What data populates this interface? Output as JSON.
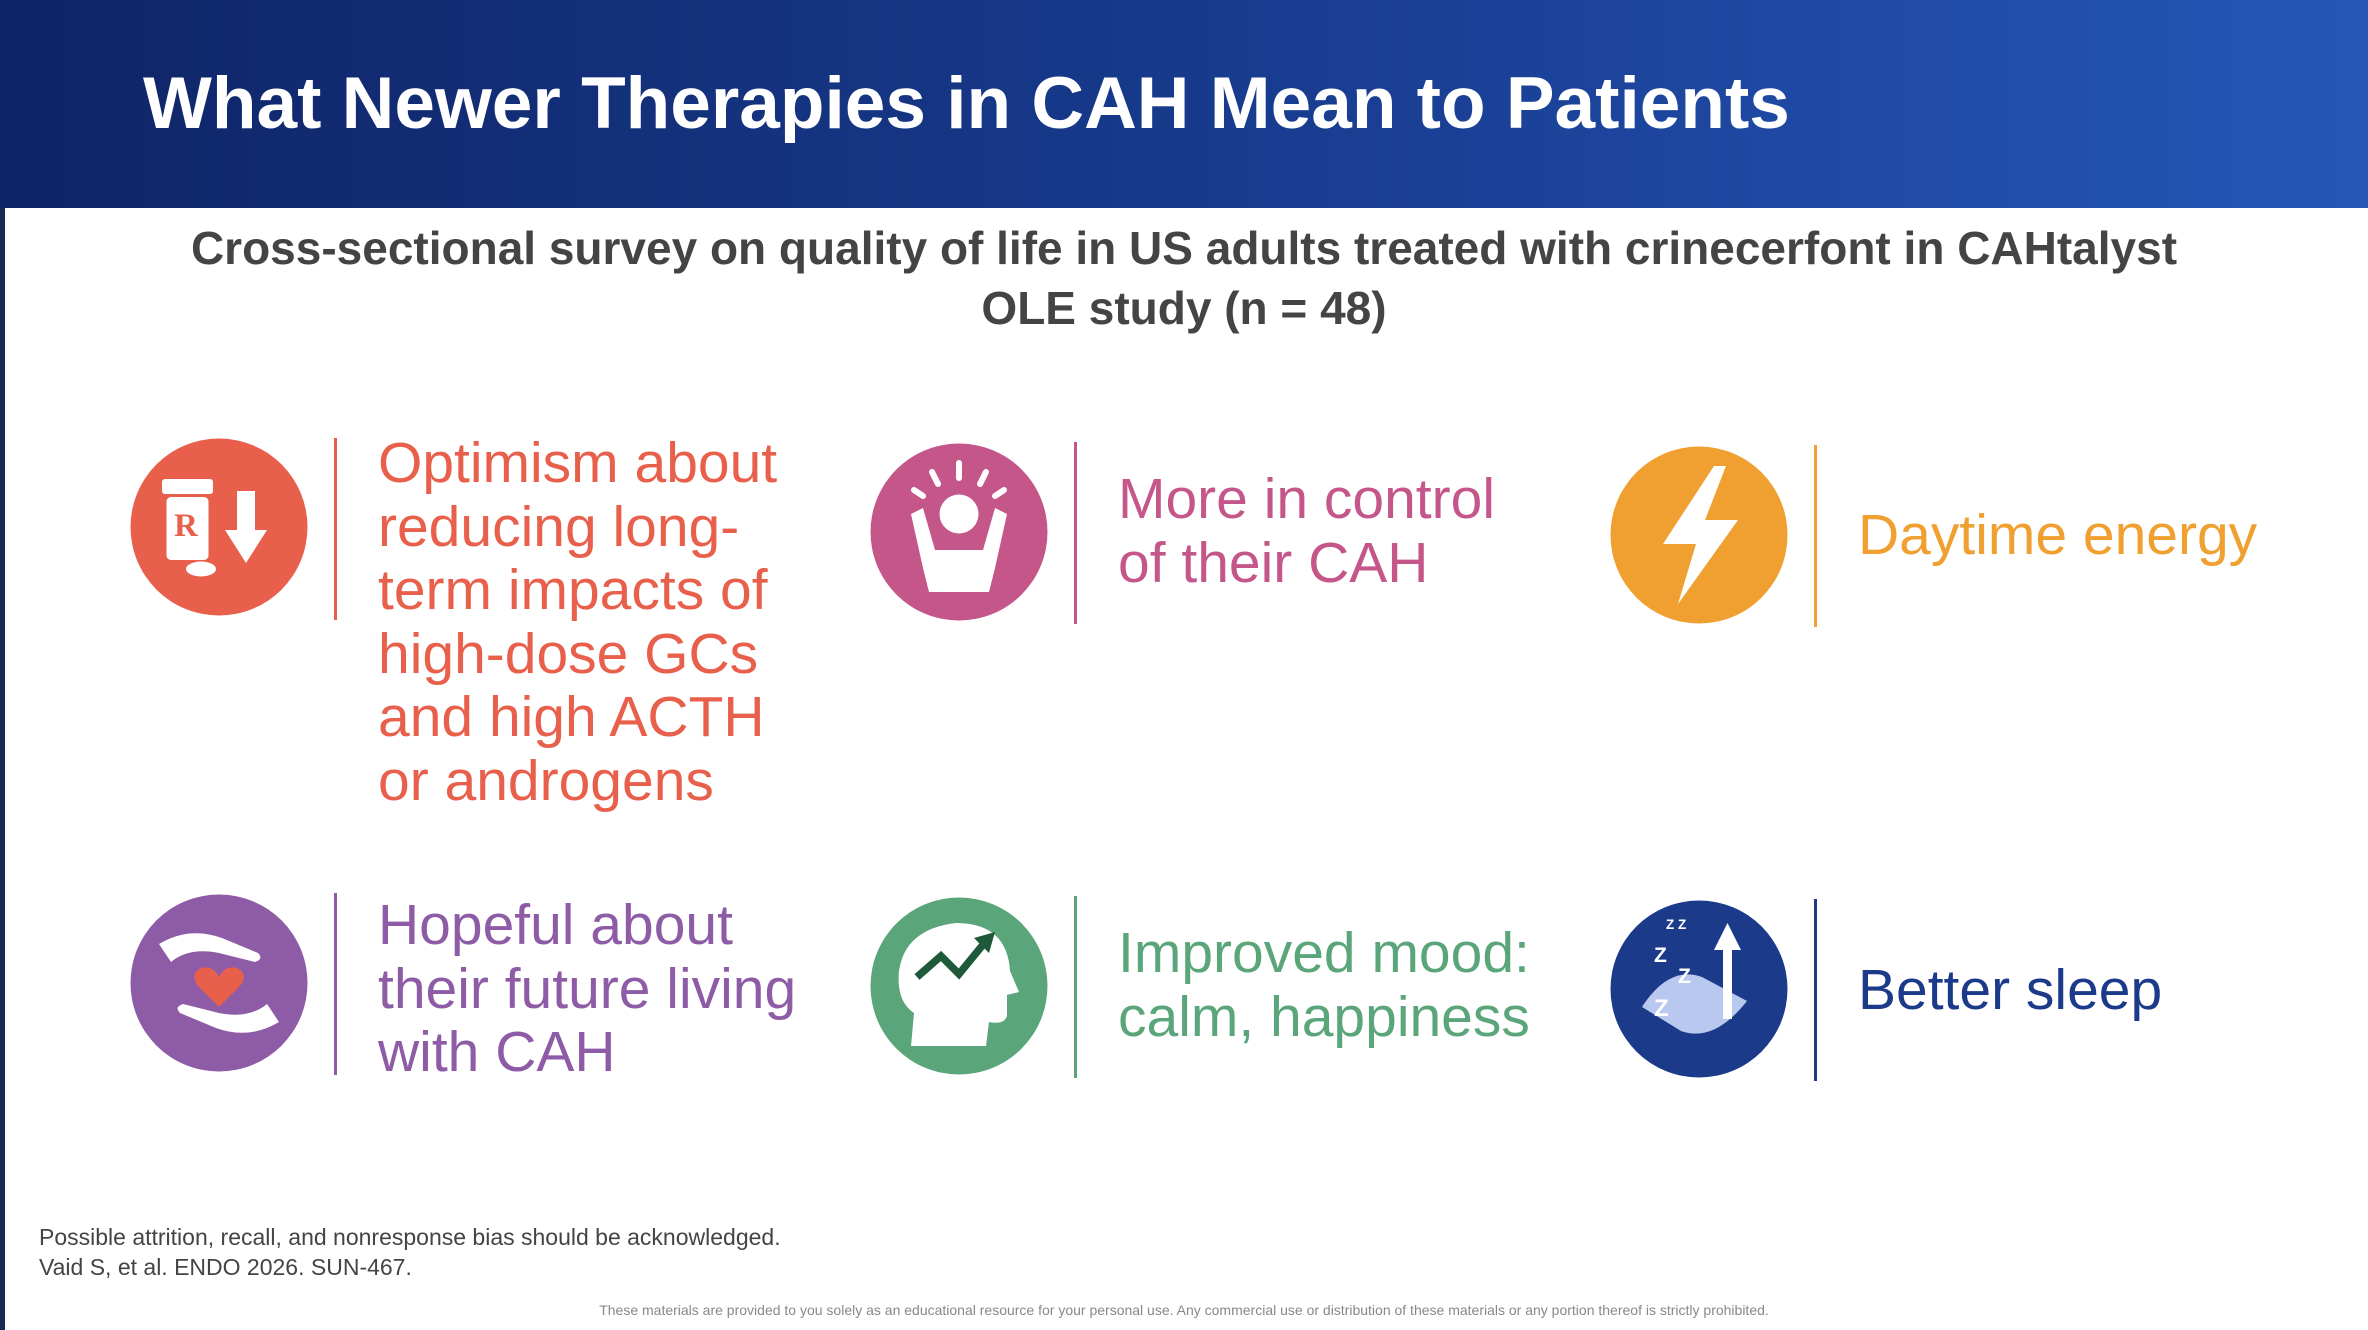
{
  "header": {
    "title": "What Newer Therapies in CAH Mean to Patients"
  },
  "subtitle": {
    "lines": [
      "Cross-sectional survey on quality of life in US adults treated with crinecerfont in CAHtalyst",
      "OLE study (n = 48)"
    ]
  },
  "items": [
    {
      "lines": [
        "Optimism about",
        "reducing long-",
        "term impacts of",
        "high-dose GCs",
        "and high ACTH",
        "or androgens"
      ]
    },
    {
      "lines": [
        "More in control",
        "of their CAH"
      ]
    },
    {
      "lines": [
        "Daytime energy"
      ]
    },
    {
      "lines": [
        "Hopeful about",
        "their future living",
        "with CAH"
      ]
    },
    {
      "lines": [
        "Improved mood:",
        "calm, happiness"
      ]
    },
    {
      "lines": [
        "Better sleep"
      ]
    }
  ],
  "footer": {
    "notes": [
      "Possible attrition, recall, and nonresponse bias should be acknowledged.",
      "Vaid S, et al. ENDO 2026. SUN-467."
    ],
    "disclaimer": "These materials are provided to you solely as an educational resource for your personal use. Any commercial use or distribution of these materials or any portion thereof is strictly prohibited."
  }
}
